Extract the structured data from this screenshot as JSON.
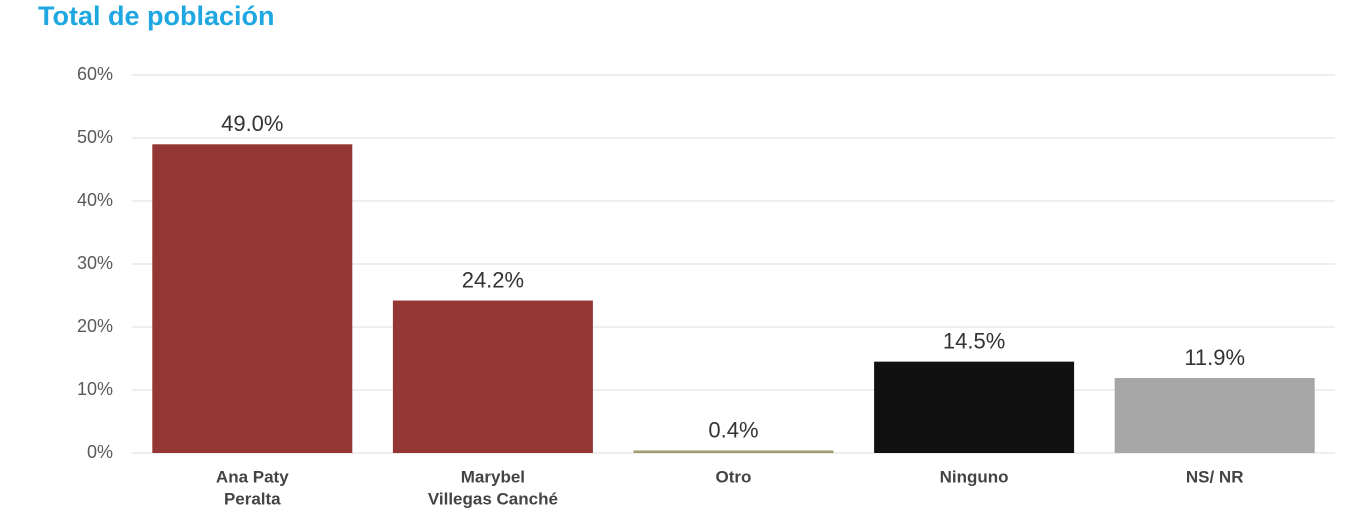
{
  "chart_data": {
    "type": "bar",
    "title": "Total de población",
    "categories": [
      [
        "Ana Paty",
        "Peralta"
      ],
      [
        "Marybel",
        "Villegas Canché"
      ],
      [
        "Otro"
      ],
      [
        "Ninguno"
      ],
      [
        "NS/ NR"
      ]
    ],
    "values": [
      49.0,
      24.2,
      0.4,
      14.5,
      11.9
    ],
    "value_labels": [
      "49.0%",
      "24.2%",
      "0.4%",
      "14.5%",
      "11.9%"
    ],
    "colors": [
      "#943634",
      "#943634",
      "#a39a6e",
      "#111111",
      "#a6a6a6"
    ],
    "ylim": [
      0,
      60
    ],
    "yticks": [
      {
        "value": 0,
        "label": "0%"
      },
      {
        "value": 10,
        "label": "10%"
      },
      {
        "value": 20,
        "label": "20%"
      },
      {
        "value": 30,
        "label": "30%"
      },
      {
        "value": 40,
        "label": "40%"
      },
      {
        "value": 50,
        "label": "50%"
      },
      {
        "value": 60,
        "label": "60%"
      }
    ],
    "grid": true
  }
}
